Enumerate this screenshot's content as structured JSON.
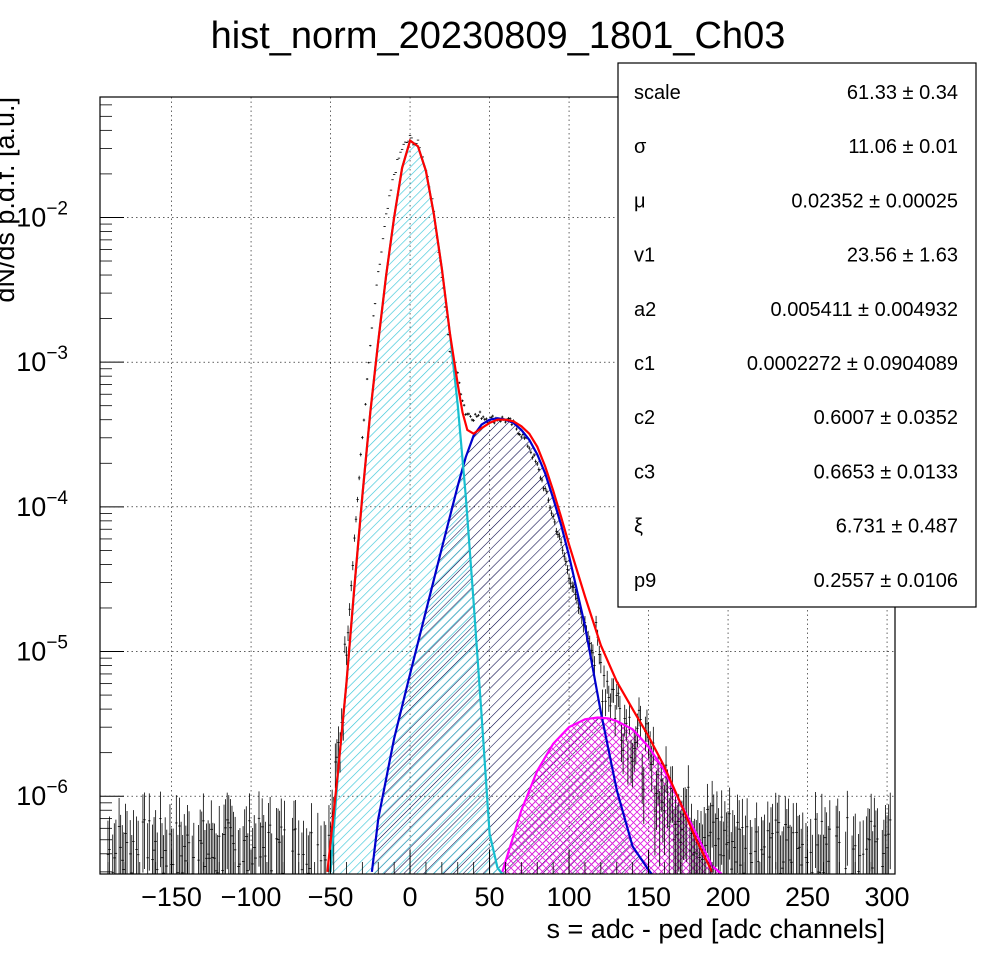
{
  "chart_data": {
    "type": "histogram-log",
    "title": "hist_norm_20230809_1801_Ch03",
    "xlabel": "s = adc - ped [adc channels]",
    "ylabel": "dN/ds p.d.f. [a.u.]",
    "xlim": [
      -195,
      305
    ],
    "ylog": true,
    "ylim": [
      2.9e-07,
      0.068
    ],
    "grid": true,
    "x_ticks": [
      {
        "v": -150,
        "label": "−150"
      },
      {
        "v": -100,
        "label": "−100"
      },
      {
        "v": -50,
        "label": "−50"
      },
      {
        "v": 0,
        "label": "0"
      },
      {
        "v": 50,
        "label": "50"
      },
      {
        "v": 100,
        "label": "100"
      },
      {
        "v": 150,
        "label": "150"
      },
      {
        "v": 200,
        "label": "200"
      },
      {
        "v": 250,
        "label": "250"
      },
      {
        "v": 300,
        "label": "300"
      }
    ],
    "y_ticks": [
      {
        "v": 1e-06,
        "base": "10",
        "exp": "−6"
      },
      {
        "v": 1e-05,
        "base": "10",
        "exp": "−5"
      },
      {
        "v": 0.0001,
        "base": "10",
        "exp": "−4"
      },
      {
        "v": 0.001,
        "base": "10",
        "exp": "−3"
      },
      {
        "v": 0.01,
        "base": "10",
        "exp": "−2"
      }
    ],
    "histogram": {
      "x": [
        -50,
        -45,
        -40,
        -35,
        -30,
        -25,
        -20,
        -15,
        -10,
        -5,
        0,
        5,
        10,
        15,
        20,
        25,
        30,
        35,
        40,
        45,
        50,
        55,
        60,
        65,
        70,
        75,
        80,
        85,
        90,
        95,
        100,
        105,
        110,
        115,
        120,
        125,
        130,
        135,
        140,
        145,
        150,
        155,
        160,
        170,
        180,
        200,
        230,
        300
      ],
      "y": [
        4e-07,
        2e-06,
        1e-05,
        6e-05,
        0.0003,
        0.0013,
        0.004,
        0.01,
        0.02,
        0.03,
        0.035,
        0.032,
        0.022,
        0.011,
        0.004,
        0.0012,
        0.0008,
        0.00045,
        0.00042,
        0.00043,
        0.0004,
        0.00041,
        0.0004,
        0.00037,
        0.00032,
        0.00026,
        0.00019,
        0.00013,
        8.5e-05,
        5.5e-05,
        3.4e-05,
        2.2e-05,
        1.5e-05,
        1e-05,
        8e-06,
        6e-06,
        4.5e-06,
        3.5e-06,
        2.8e-06,
        2.2e-06,
        1.7e-06,
        1.3e-06,
        1e-06,
        8e-07,
        6e-07,
        5e-07,
        4e-07,
        4e-07
      ]
    },
    "curves": [
      {
        "color": "#ff0000",
        "fill": "none",
        "x": [
          -52,
          -45,
          -40,
          -35,
          -30,
          -25,
          -20,
          -15,
          -10,
          -5,
          0,
          5,
          10,
          15,
          20,
          25,
          30,
          33,
          36,
          40,
          45,
          50,
          55,
          60,
          65,
          70,
          75,
          80,
          85,
          90,
          95,
          100,
          110,
          120,
          130,
          140,
          150,
          160,
          170,
          180,
          190
        ],
        "y": [
          3e-07,
          1.6e-06,
          6e-06,
          2.8e-05,
          0.00012,
          0.00045,
          0.0014,
          0.004,
          0.01,
          0.022,
          0.034,
          0.031,
          0.021,
          0.0105,
          0.0044,
          0.0016,
          0.0007,
          0.00045,
          0.00034,
          0.00032,
          0.00035,
          0.00038,
          0.0004,
          0.0004,
          0.00039,
          0.00036,
          0.00032,
          0.00026,
          0.00019,
          0.00013,
          8.5e-05,
          5.5e-05,
          2.4e-05,
          1.1e-05,
          6.2e-06,
          4e-06,
          2.6e-06,
          1.6e-06,
          9e-07,
          5e-07,
          3e-07
        ]
      },
      {
        "color": "#17becf",
        "fill": "#37c6d8",
        "x": [
          -50,
          -45,
          -40,
          -35,
          -30,
          -25,
          -20,
          -15,
          -10,
          -5,
          0,
          5,
          10,
          15,
          20,
          25,
          30,
          35,
          40,
          45,
          50,
          55,
          58
        ],
        "y": [
          3e-07,
          1.6e-06,
          6e-06,
          2.8e-05,
          0.00012,
          0.00045,
          0.0014,
          0.004,
          0.01,
          0.022,
          0.034,
          0.031,
          0.021,
          0.0105,
          0.0044,
          0.0016,
          0.0005,
          0.00012,
          2.2e-05,
          3.6e-06,
          5.5e-07,
          3.2e-07,
          2.9e-07
        ]
      },
      {
        "color": "#0000cc",
        "fill": "#000066",
        "x": [
          -24,
          -20,
          -10,
          0,
          10,
          20,
          25,
          30,
          35,
          40,
          45,
          50,
          55,
          60,
          65,
          70,
          75,
          80,
          85,
          90,
          95,
          100,
          110,
          120,
          130,
          140,
          150,
          152
        ],
        "y": [
          3e-07,
          7e-07,
          2.5e-06,
          7e-06,
          1.9e-05,
          5.2e-05,
          8.5e-05,
          0.00014,
          0.00022,
          0.00031,
          0.00037,
          0.0004,
          0.00041,
          0.0004,
          0.00038,
          0.00034,
          0.00029,
          0.00023,
          0.00017,
          0.000115,
          7.5e-05,
          4.6e-05,
          1.5e-05,
          3.8e-06,
          1.1e-06,
          4.5e-07,
          3.1e-07,
          2.9e-07
        ]
      },
      {
        "color": "#ff00ff",
        "fill": "#ff00ff",
        "x": [
          58,
          70,
          80,
          90,
          100,
          110,
          118,
          125,
          130,
          140,
          150,
          160,
          170,
          180,
          190,
          196
        ],
        "y": [
          3e-07,
          8e-07,
          1.5e-06,
          2.3e-06,
          3e-06,
          3.4e-06,
          3.5e-06,
          3.45e-06,
          3.3e-06,
          2.9e-06,
          2.2e-06,
          1.5e-06,
          9e-07,
          5.5e-07,
          3.3e-07,
          2.9e-07
        ]
      }
    ]
  },
  "stats": [
    {
      "name": "scale",
      "value": "61.33",
      "err": "0.34"
    },
    {
      "name": "σ",
      "value": "11.06",
      "err": "0.01"
    },
    {
      "name": "μ",
      "value": "0.02352",
      "err": "0.00025"
    },
    {
      "name": "v1",
      "value": "23.56",
      "err": "1.63"
    },
    {
      "name": "a2",
      "value": "0.005411",
      "err": "0.004932"
    },
    {
      "name": "c1",
      "value": "0.0002272",
      "err": "0.0904089"
    },
    {
      "name": "c2",
      "value": "0.6007",
      "err": "0.0352"
    },
    {
      "name": "c3",
      "value": "0.6653",
      "err": "0.0133"
    },
    {
      "name": "ξ",
      "value": "6.731",
      "err": "0.487"
    },
    {
      "name": "p9",
      "value": "0.2557",
      "err": "0.0106"
    }
  ]
}
